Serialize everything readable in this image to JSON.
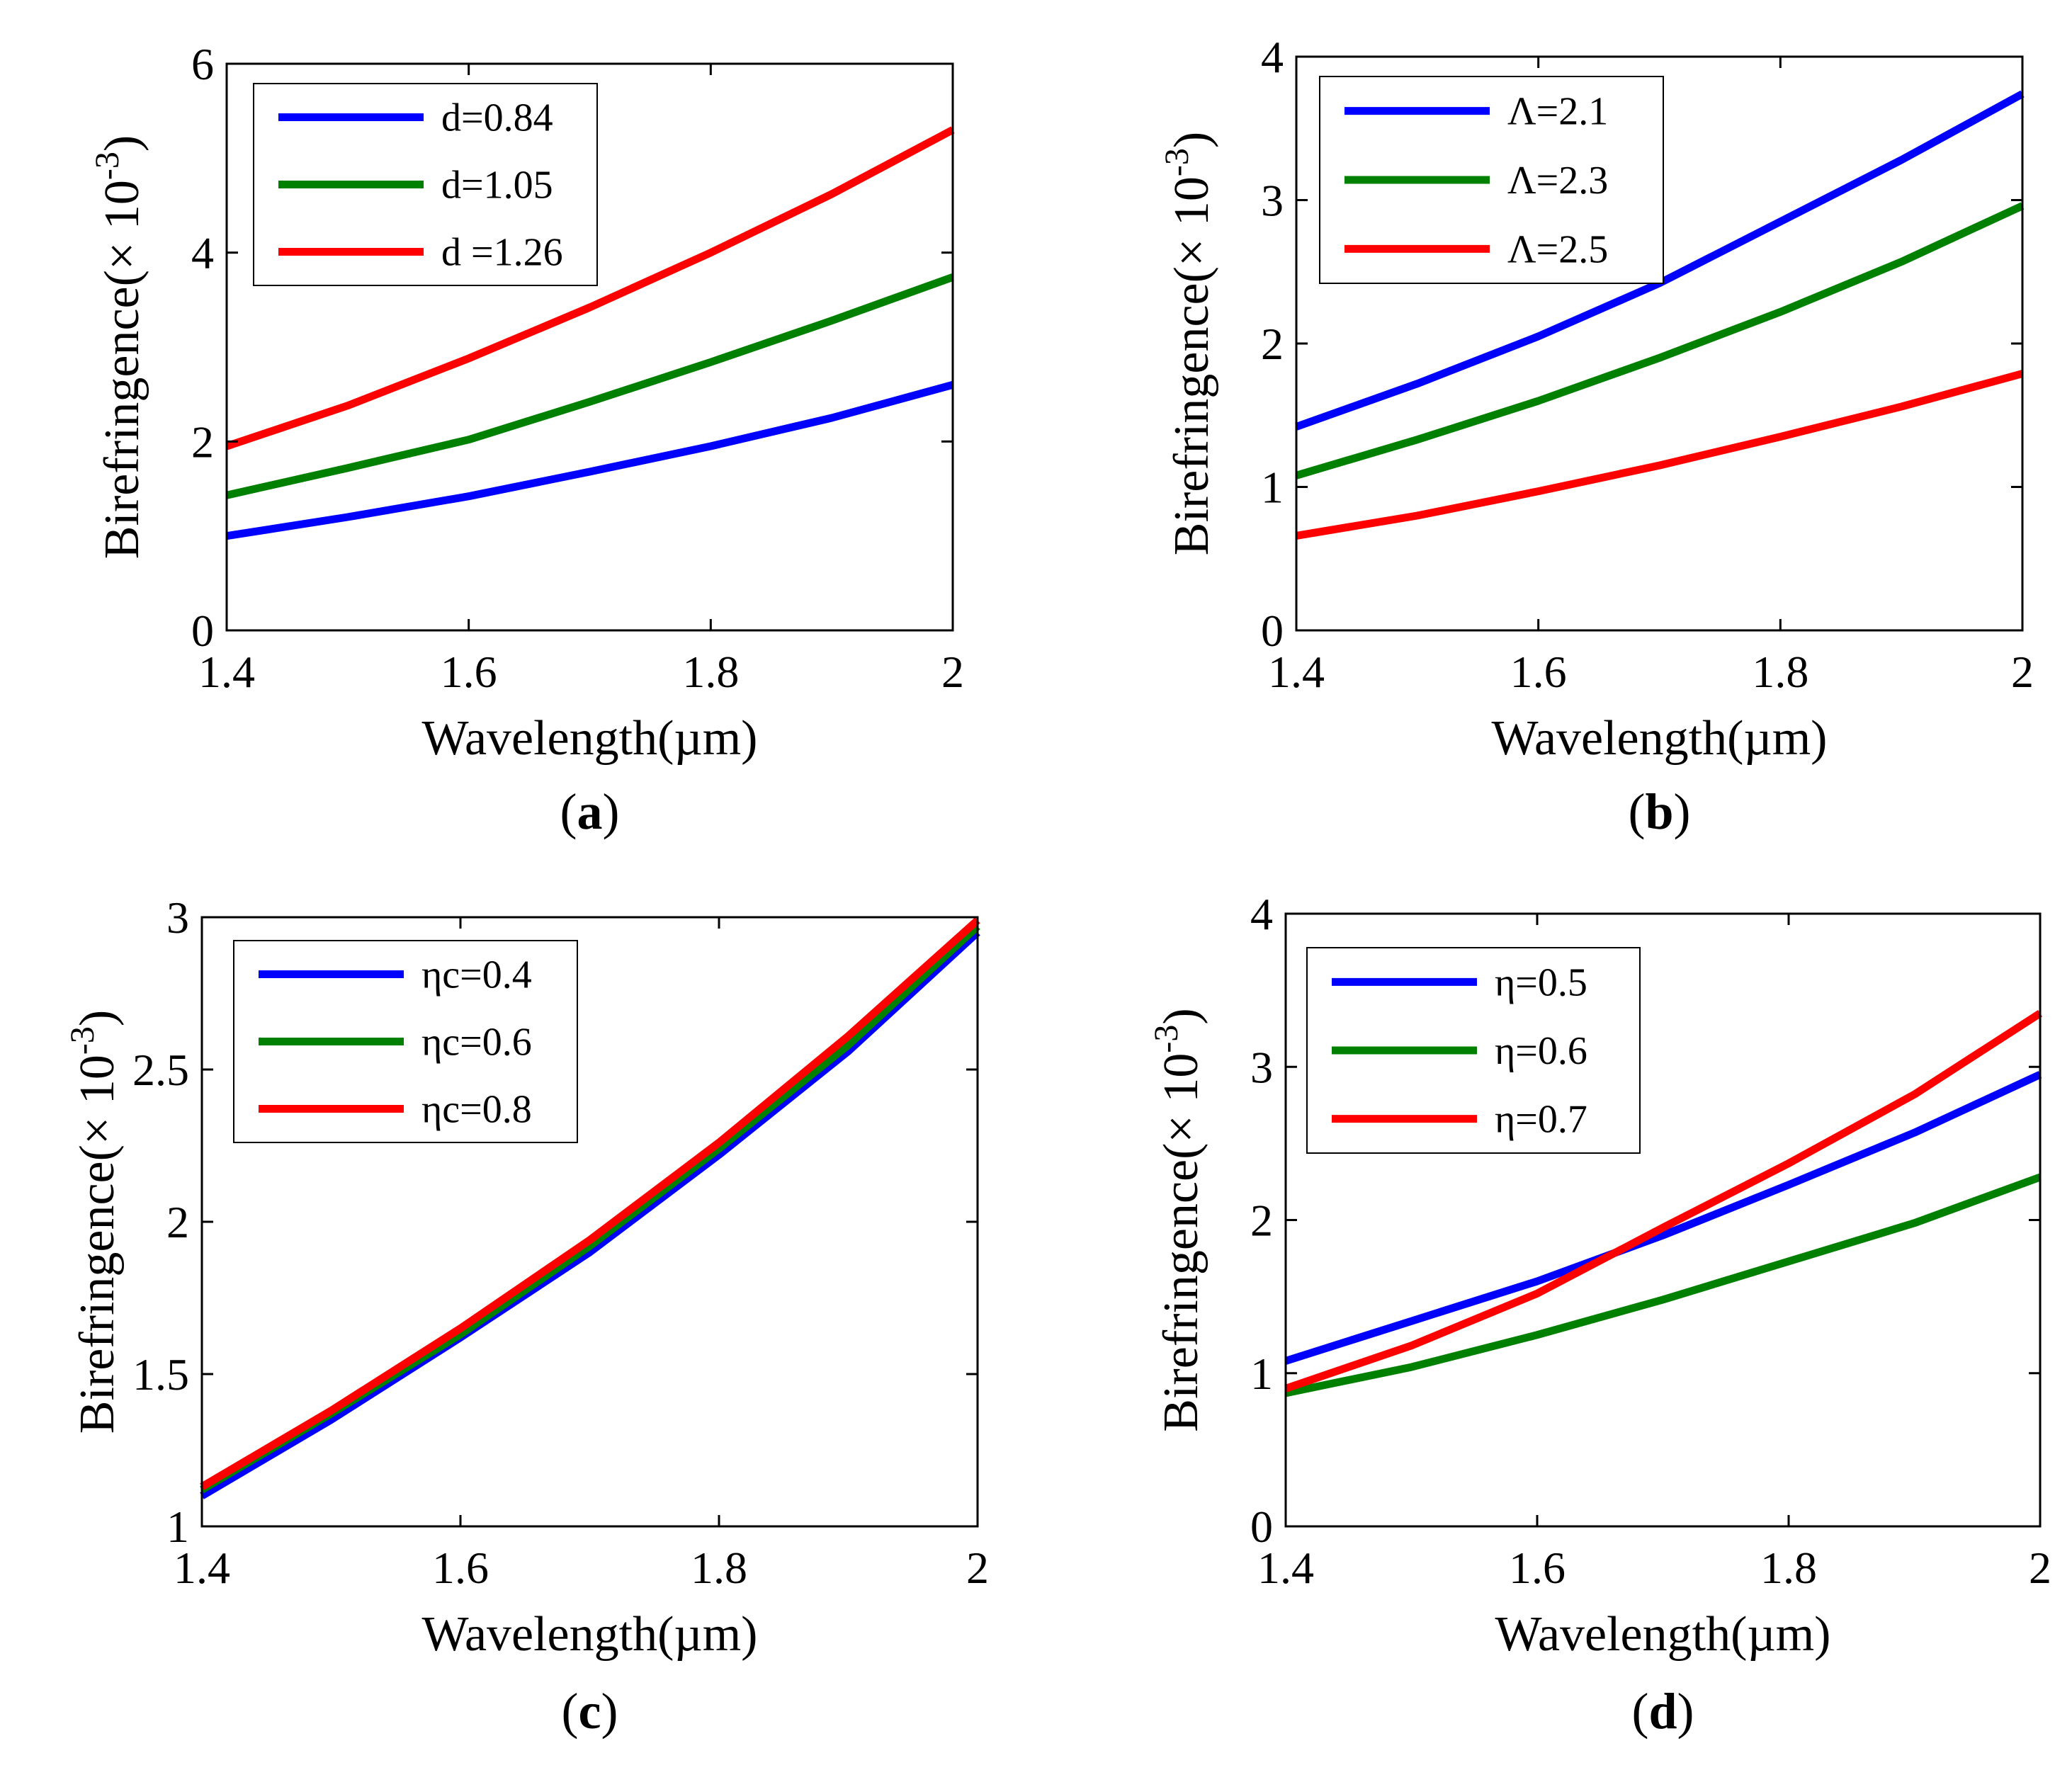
{
  "chart_data": [
    {
      "type": "line",
      "panel": "a",
      "caption_letter": "a",
      "xlabel": "Wavelength(µm)",
      "ylabel_prefix": "Birefringence(× 10",
      "ylabel_exp": "-3",
      "ylabel_suffix": ")",
      "xlim": [
        1.4,
        2
      ],
      "ylim": [
        0,
        6
      ],
      "xticks": [
        1.4,
        1.6,
        1.8,
        2
      ],
      "xtick_labels": [
        "1.4",
        "1.6",
        "1.8",
        "2"
      ],
      "yticks": [
        0,
        2,
        4,
        6
      ],
      "ytick_labels": [
        "0",
        "2",
        "4",
        "6"
      ],
      "legend_position": "top-left",
      "x": [
        1.4,
        1.5,
        1.6,
        1.7,
        1.8,
        1.9,
        2.0
      ],
      "series": [
        {
          "name": "d=0.84",
          "color": "#0000ff",
          "values": [
            1.0,
            1.2,
            1.42,
            1.68,
            1.95,
            2.25,
            2.6
          ]
        },
        {
          "name": "d=1.05",
          "color": "#008000",
          "values": [
            1.43,
            1.72,
            2.02,
            2.42,
            2.84,
            3.28,
            3.74
          ]
        },
        {
          "name": "d =1.26",
          "color": "#ff0000",
          "values": [
            1.95,
            2.38,
            2.88,
            3.42,
            4.0,
            4.62,
            5.3
          ]
        }
      ]
    },
    {
      "type": "line",
      "panel": "b",
      "caption_letter": "b",
      "xlabel": "Wavelength(µm)",
      "ylabel_prefix": "Birefringence(× 10",
      "ylabel_exp": "-3",
      "ylabel_suffix": ")",
      "xlim": [
        1.4,
        2
      ],
      "ylim": [
        0,
        4
      ],
      "xticks": [
        1.4,
        1.6,
        1.8,
        2
      ],
      "xtick_labels": [
        "1.4",
        "1.6",
        "1.8",
        "2"
      ],
      "yticks": [
        0,
        1,
        2,
        3,
        4
      ],
      "ytick_labels": [
        "0",
        "1",
        "2",
        "3",
        "4"
      ],
      "legend_position": "top-left",
      "x": [
        1.4,
        1.5,
        1.6,
        1.7,
        1.8,
        1.9,
        2.0
      ],
      "series": [
        {
          "name": "Λ=2.1",
          "color": "#0000ff",
          "values": [
            1.42,
            1.72,
            2.05,
            2.42,
            2.85,
            3.28,
            3.74
          ]
        },
        {
          "name": "Λ=2.3",
          "color": "#008000",
          "values": [
            1.08,
            1.33,
            1.6,
            1.9,
            2.22,
            2.57,
            2.96
          ]
        },
        {
          "name": "Λ=2.5",
          "color": "#ff0000",
          "values": [
            0.66,
            0.8,
            0.97,
            1.15,
            1.35,
            1.56,
            1.79
          ]
        }
      ]
    },
    {
      "type": "line",
      "panel": "c",
      "caption_letter": "c",
      "xlabel": "Wavelength(µm)",
      "ylabel_prefix": "Birefringence(× 10",
      "ylabel_exp": "-3",
      "ylabel_suffix": ")",
      "xlim": [
        1.4,
        2
      ],
      "ylim": [
        1,
        3
      ],
      "xticks": [
        1.4,
        1.6,
        1.8,
        2
      ],
      "xtick_labels": [
        "1.4",
        "1.6",
        "1.8",
        "2"
      ],
      "yticks": [
        1,
        1.5,
        2,
        2.5,
        3
      ],
      "ytick_labels": [
        "1",
        "1.5",
        "2",
        "2.5",
        "3"
      ],
      "legend_position": "top-left",
      "x": [
        1.4,
        1.5,
        1.6,
        1.7,
        1.8,
        1.9,
        2.0
      ],
      "series": [
        {
          "name": "ηc=0.4",
          "color": "#0000ff",
          "values": [
            1.1,
            1.35,
            1.62,
            1.9,
            2.22,
            2.56,
            2.95
          ]
        },
        {
          "name": "ηc=0.6",
          "color": "#008000",
          "values": [
            1.12,
            1.37,
            1.63,
            1.92,
            2.24,
            2.58,
            2.97
          ]
        },
        {
          "name": "ηc=0.8",
          "color": "#ff0000",
          "values": [
            1.13,
            1.38,
            1.65,
            1.94,
            2.26,
            2.61,
            2.99
          ]
        }
      ]
    },
    {
      "type": "line",
      "panel": "d",
      "caption_letter": "d",
      "xlabel": "Wavelength(µm)",
      "ylabel_prefix": "Birefringence(× 10",
      "ylabel_exp": "-3",
      "ylabel_suffix": ")",
      "xlim": [
        1.4,
        2
      ],
      "ylim": [
        0,
        4
      ],
      "xticks": [
        1.4,
        1.6,
        1.8,
        2
      ],
      "xtick_labels": [
        "1.4",
        "1.6",
        "1.8",
        "2"
      ],
      "yticks": [
        0,
        1,
        2,
        3,
        4
      ],
      "ytick_labels": [
        "0",
        "1",
        "2",
        "3",
        "4"
      ],
      "legend_position": "top-left",
      "x": [
        1.4,
        1.5,
        1.6,
        1.7,
        1.8,
        1.9,
        2.0
      ],
      "series": [
        {
          "name": "η=0.5",
          "color": "#0000ff",
          "values": [
            1.08,
            1.34,
            1.6,
            1.9,
            2.23,
            2.57,
            2.95
          ]
        },
        {
          "name": "η=0.6",
          "color": "#008000",
          "values": [
            0.87,
            1.04,
            1.25,
            1.48,
            1.73,
            1.98,
            2.28
          ]
        },
        {
          "name": "η=0.7",
          "color": "#ff0000",
          "values": [
            0.9,
            1.18,
            1.52,
            1.95,
            2.37,
            2.82,
            3.35
          ]
        }
      ]
    }
  ]
}
